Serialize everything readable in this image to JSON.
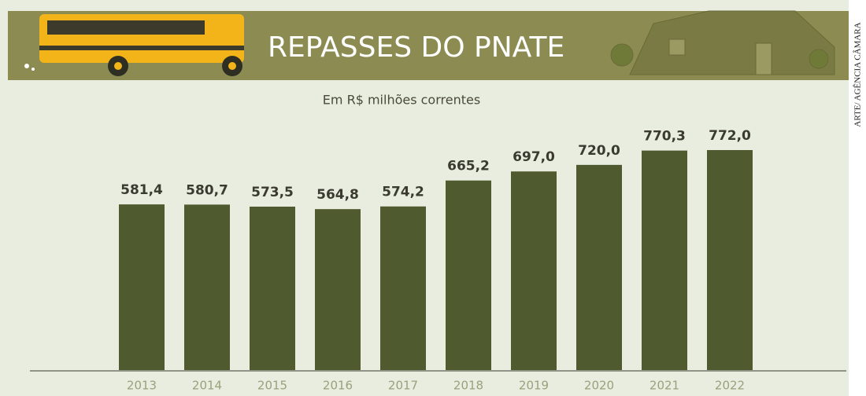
{
  "chart_data": {
    "type": "bar",
    "title": "REPASSES DO PNATE",
    "subtitle": "Em R$ milhões correntes",
    "credit": "ARTE/ AGÊNCIA CÂMARA",
    "categories": [
      "2013",
      "2014",
      "2015",
      "2016",
      "2017",
      "2018",
      "2019",
      "2020",
      "2021",
      "2022"
    ],
    "values": [
      581.4,
      580.7,
      573.5,
      564.8,
      574.2,
      665.2,
      697.0,
      720.0,
      770.3,
      772.0
    ],
    "value_labels": [
      "581,4",
      "580,7",
      "573,5",
      "564,8",
      "574,2",
      "665,2",
      "697,0",
      "720,0",
      "770,3",
      "772,0"
    ],
    "color": "#4f5b2f"
  }
}
